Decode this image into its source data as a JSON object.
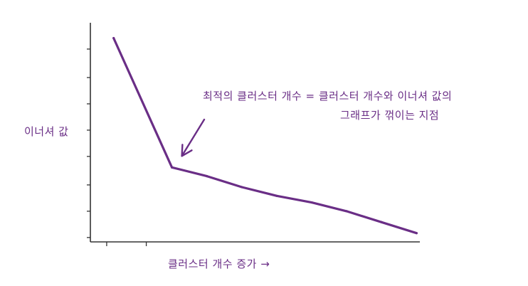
{
  "chart_data": {
    "type": "line",
    "title": "",
    "xlabel": "클러스터 개수 증가 →",
    "ylabel": "이너셔 값",
    "x": [
      1,
      3.5,
      5,
      6.5,
      8,
      9.5,
      11,
      12.5,
      14
    ],
    "y": [
      9.3,
      3.4,
      3.0,
      2.5,
      2.1,
      1.8,
      1.4,
      0.9,
      0.4
    ],
    "xlim": [
      0,
      14.6
    ],
    "ylim": [
      0,
      10
    ],
    "grid": false,
    "color": "#6a2e86",
    "annotation": {
      "line1": "최적의 클러스터 개수 = 클러스터 개수와 이너셔 값의",
      "line2": "그래프가 꺾이는 지점",
      "target_x": 3.5,
      "target_y": 3.4
    }
  }
}
